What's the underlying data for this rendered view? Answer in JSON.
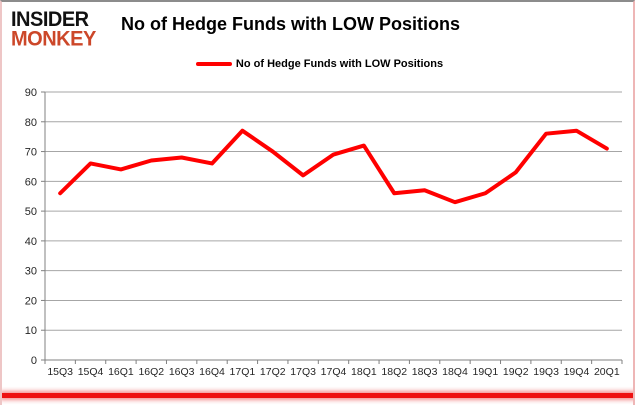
{
  "logo": {
    "line1": "INSIDER",
    "line2": "MONKEY"
  },
  "header": {
    "title": "No of Hedge Funds with LOW Positions"
  },
  "legend": {
    "label": "No of Hedge Funds with LOW Positions",
    "line_color": "#ff0000"
  },
  "colors": {
    "series": "#ff0000",
    "gridline": "#a6a6a6",
    "axis": "#808080",
    "tick_label": "#262626",
    "bottom_bar": "#ee1111",
    "logo_monkey": "#cc4729"
  },
  "chart_data": {
    "type": "line",
    "title": "No of Hedge Funds with LOW Positions",
    "categories": [
      "15Q3",
      "15Q4",
      "16Q1",
      "16Q2",
      "16Q3",
      "16Q4",
      "17Q1",
      "17Q2",
      "17Q3",
      "17Q4",
      "18Q1",
      "18Q2",
      "18Q3",
      "18Q4",
      "19Q1",
      "19Q2",
      "19Q3",
      "19Q4",
      "20Q1"
    ],
    "series": [
      {
        "name": "No of Hedge Funds with LOW Positions",
        "color": "#ff0000",
        "values": [
          56,
          66,
          64,
          67,
          68,
          66,
          77,
          70,
          62,
          69,
          72,
          56,
          57,
          53,
          56,
          63,
          76,
          77,
          71
        ]
      }
    ],
    "xlabel": "",
    "ylabel": "",
    "ylim": [
      0,
      90
    ],
    "yticks": [
      0,
      10,
      20,
      30,
      40,
      50,
      60,
      70,
      80,
      90
    ],
    "grid": true,
    "legend_position": "top-center"
  }
}
